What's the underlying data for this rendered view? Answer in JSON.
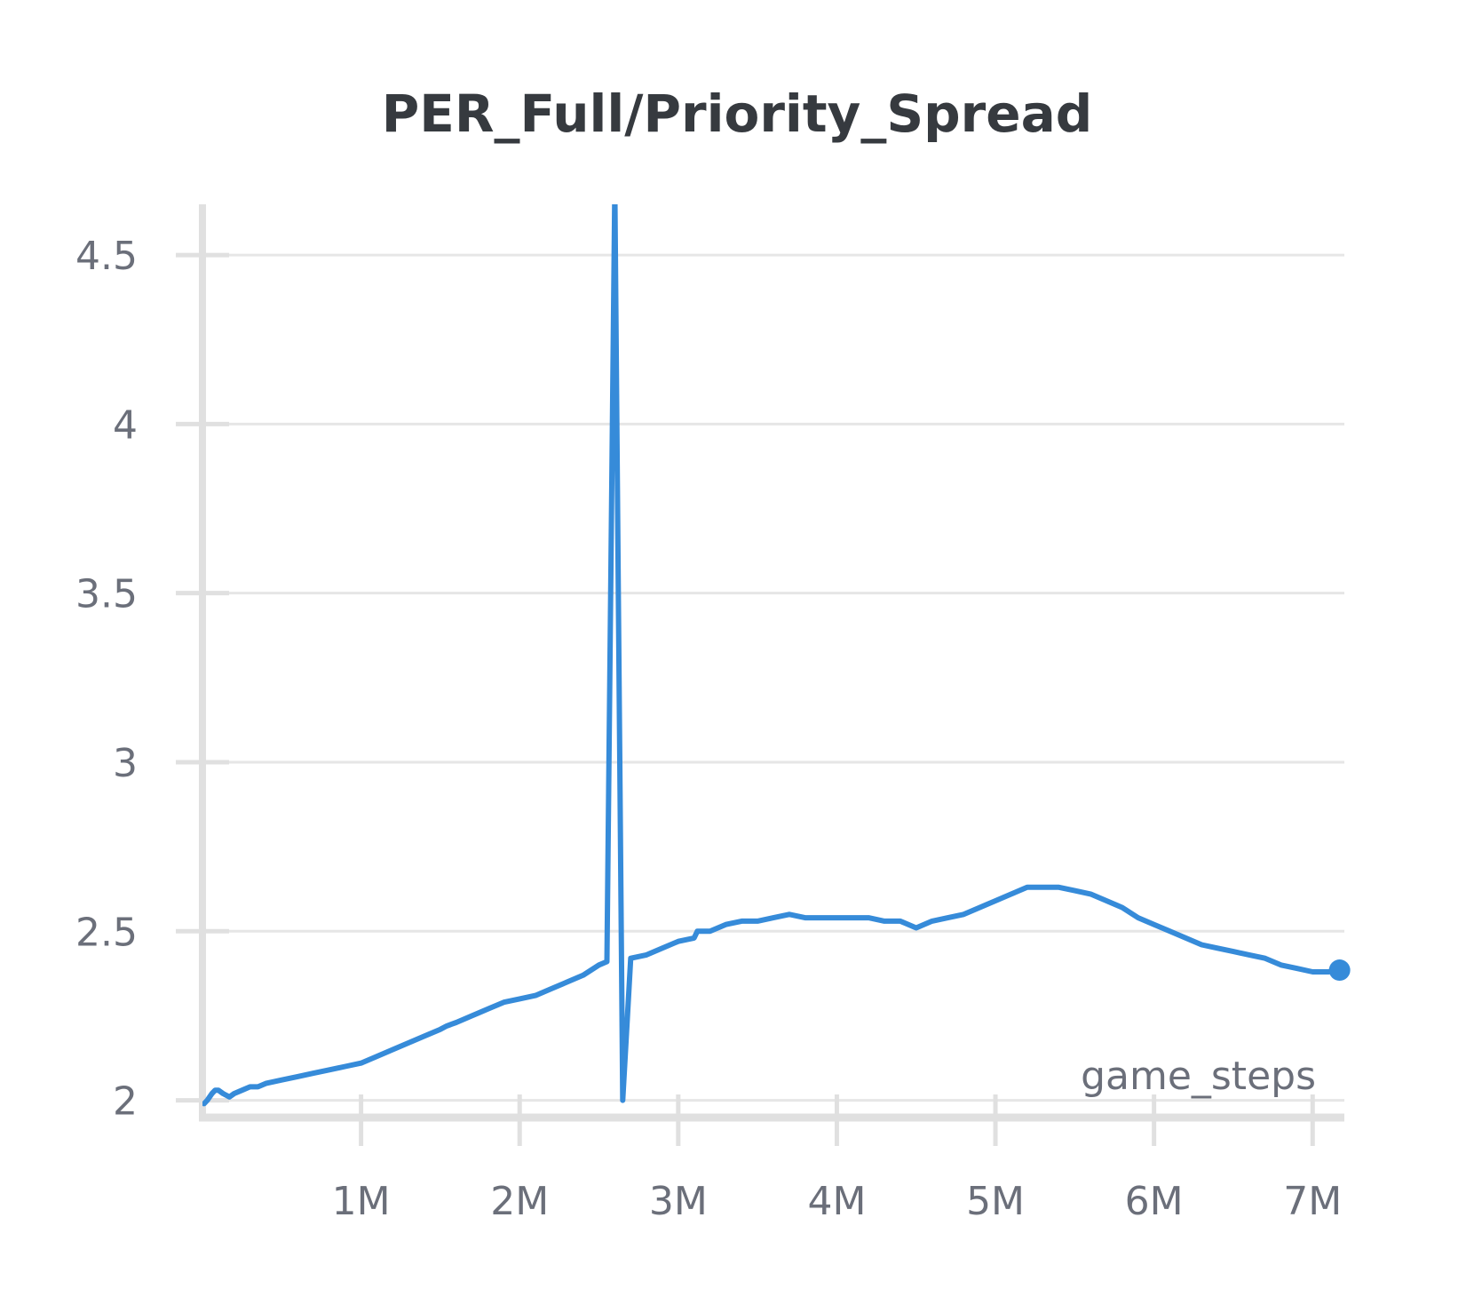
{
  "chart_data": {
    "type": "line",
    "title": "PER_Full/Priority_Spread",
    "xlabel": "game_steps",
    "ylabel": "",
    "xlim": [
      0,
      7200000
    ],
    "ylim": [
      1.97,
      4.65
    ],
    "x_ticks": [
      {
        "value": 1000000,
        "label": "1M"
      },
      {
        "value": 2000000,
        "label": "2M"
      },
      {
        "value": 3000000,
        "label": "3M"
      },
      {
        "value": 4000000,
        "label": "4M"
      },
      {
        "value": 5000000,
        "label": "5M"
      },
      {
        "value": 6000000,
        "label": "6M"
      },
      {
        "value": 7000000,
        "label": "7M"
      }
    ],
    "y_ticks": [
      {
        "value": 2,
        "label": "2"
      },
      {
        "value": 2.5,
        "label": "2.5"
      },
      {
        "value": 3,
        "label": "3"
      },
      {
        "value": 3.5,
        "label": "3.5"
      },
      {
        "value": 4,
        "label": "4"
      },
      {
        "value": 4.5,
        "label": "4.5"
      }
    ],
    "grid": true,
    "colors": {
      "line": "#368bd9",
      "grid": "#e6e6e6",
      "axis": "#e0e0e0"
    },
    "series": [
      {
        "x": [
          10000,
          30000,
          60000,
          80000,
          100000,
          130000,
          170000,
          200000,
          250000,
          300000,
          350000,
          400000,
          500000,
          600000,
          700000,
          800000,
          900000,
          1000000,
          1100000,
          1200000,
          1300000,
          1400000,
          1500000,
          1540000,
          1600000,
          1700000,
          1800000,
          1900000,
          2000000,
          2100000,
          2200000,
          2300000,
          2400000,
          2500000,
          2550000,
          2600000,
          2650000,
          2700000,
          2800000,
          2900000,
          3000000,
          3100000,
          3120000,
          3200000,
          3300000,
          3400000,
          3500000,
          3600000,
          3700000,
          3800000,
          3900000,
          4000000,
          4100000,
          4200000,
          4300000,
          4400000,
          4500000,
          4600000,
          4700000,
          4800000,
          4900000,
          5000000,
          5100000,
          5200000,
          5300000,
          5400000,
          5500000,
          5600000,
          5700000,
          5800000,
          5900000,
          6000000,
          6100000,
          6200000,
          6300000,
          6400000,
          6500000,
          6600000,
          6700000,
          6800000,
          6900000,
          7000000,
          7100000,
          7170000
        ],
        "y": [
          1.99,
          2.0,
          2.02,
          2.03,
          2.03,
          2.02,
          2.01,
          2.02,
          2.03,
          2.04,
          2.04,
          2.05,
          2.06,
          2.07,
          2.08,
          2.09,
          2.1,
          2.11,
          2.13,
          2.15,
          2.17,
          2.19,
          2.21,
          2.22,
          2.23,
          2.25,
          2.27,
          2.29,
          2.3,
          2.31,
          2.33,
          2.35,
          2.37,
          2.4,
          2.41,
          4.7,
          2.0,
          2.42,
          2.43,
          2.45,
          2.47,
          2.48,
          2.5,
          2.5,
          2.52,
          2.53,
          2.53,
          2.54,
          2.55,
          2.54,
          2.54,
          2.54,
          2.54,
          2.54,
          2.53,
          2.53,
          2.51,
          2.53,
          2.54,
          2.55,
          2.57,
          2.59,
          2.61,
          2.63,
          2.63,
          2.63,
          2.62,
          2.61,
          2.59,
          2.57,
          2.54,
          2.52,
          2.5,
          2.48,
          2.46,
          2.45,
          2.44,
          2.43,
          2.42,
          2.4,
          2.39,
          2.38,
          2.38,
          2.385
        ]
      }
    ]
  }
}
